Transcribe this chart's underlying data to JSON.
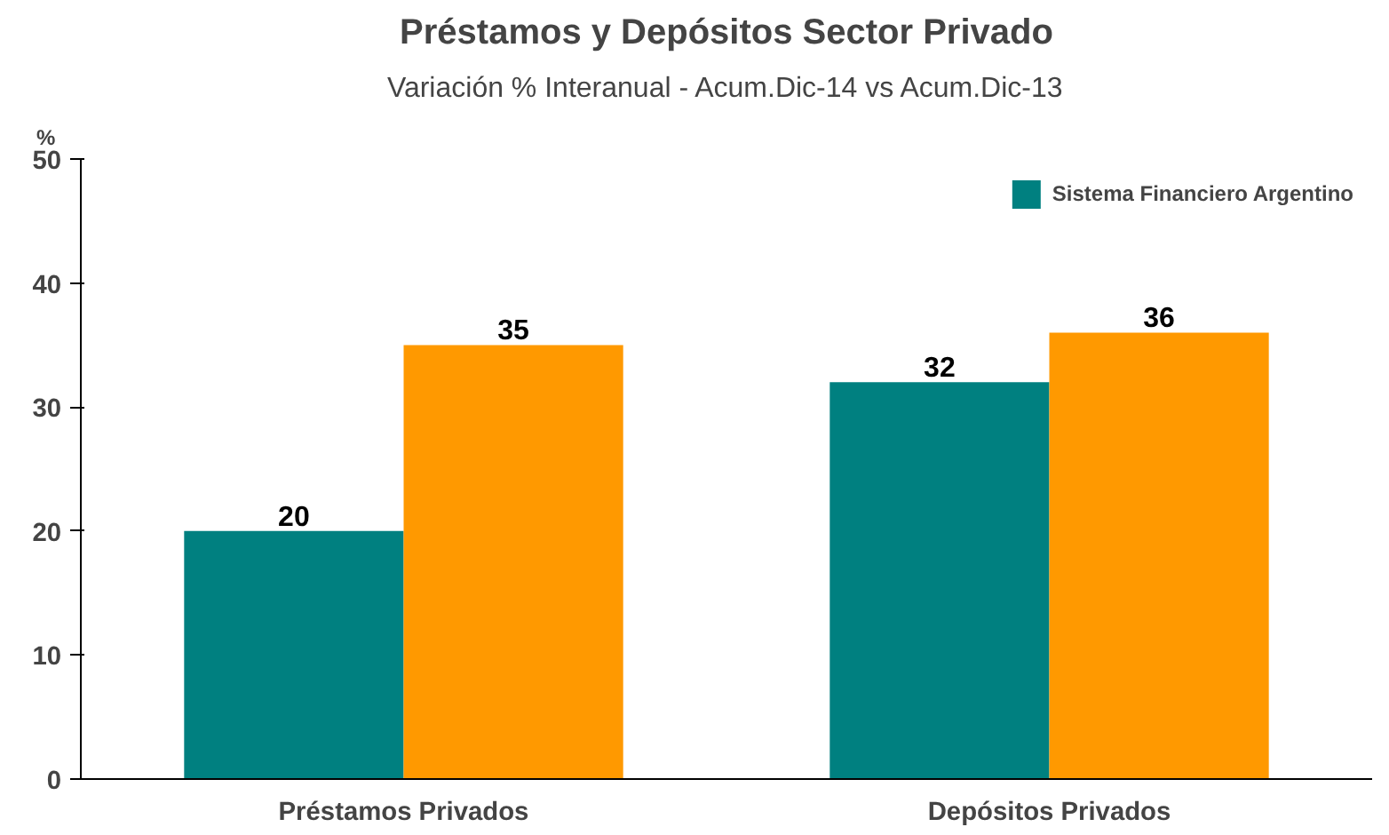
{
  "chart_data": {
    "type": "bar",
    "title": "Préstamos y Depósitos Sector Privado",
    "subtitle": "Variación % Interanual - Acum.Dic-14 vs Acum.Dic-13",
    "ylabel": "%",
    "categories": [
      "Préstamos Privados",
      "Depósitos Privados"
    ],
    "series": [
      {
        "name": "Sistema Financiero Argentino",
        "color": "#008080",
        "values": [
          20,
          32
        ]
      },
      {
        "color": "#ff9900",
        "values": [
          35,
          36
        ]
      }
    ],
    "ylim": [
      0,
      50
    ],
    "yticks": [
      0,
      10,
      20,
      30,
      40,
      50
    ],
    "grid": false,
    "legend": "top right",
    "data_labels": true
  }
}
